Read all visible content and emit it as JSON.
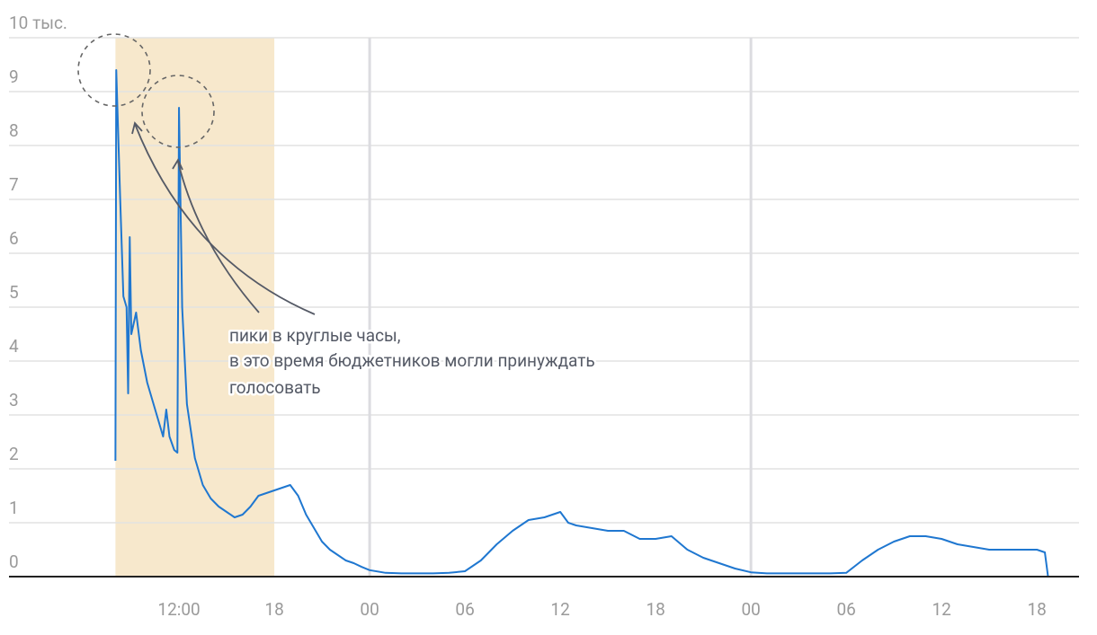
{
  "chart_data": {
    "type": "line",
    "x": [
      8.0,
      8.05,
      8.3,
      8.5,
      8.7,
      8.8,
      8.9,
      9.0,
      9.3,
      9.6,
      10.0,
      10.3,
      10.6,
      11.0,
      11.2,
      11.4,
      11.7,
      11.9,
      12.0,
      12.2,
      12.5,
      13.0,
      13.5,
      14.0,
      14.5,
      15.0,
      15.5,
      16.0,
      16.5,
      17.0,
      17.5,
      18.0,
      18.5,
      19.0,
      19.5,
      20.0,
      20.5,
      21.0,
      21.5,
      22.0,
      22.5,
      23.0,
      23.5,
      24,
      25,
      26,
      27,
      28,
      29,
      30,
      31,
      32,
      33,
      34,
      35,
      36,
      36.5,
      37,
      38,
      39,
      40,
      41,
      42,
      43,
      44,
      45,
      46,
      47,
      48,
      49,
      50,
      51,
      52,
      53,
      54,
      55,
      56,
      57,
      58,
      59,
      60,
      61,
      62,
      63,
      64,
      65,
      66,
      66.5,
      66.7
    ],
    "values": [
      2.15,
      9.4,
      7.0,
      5.2,
      5.0,
      3.4,
      6.3,
      4.5,
      4.9,
      4.2,
      3.6,
      3.3,
      3.0,
      2.6,
      3.1,
      2.6,
      2.35,
      2.3,
      8.7,
      5.0,
      3.2,
      2.2,
      1.7,
      1.45,
      1.3,
      1.2,
      1.1,
      1.15,
      1.3,
      1.5,
      1.55,
      1.6,
      1.65,
      1.7,
      1.5,
      1.15,
      0.9,
      0.65,
      0.5,
      0.4,
      0.3,
      0.25,
      0.18,
      0.12,
      0.07,
      0.06,
      0.06,
      0.06,
      0.07,
      0.1,
      0.3,
      0.6,
      0.85,
      1.05,
      1.1,
      1.2,
      1.0,
      0.95,
      0.9,
      0.85,
      0.85,
      0.7,
      0.7,
      0.75,
      0.5,
      0.35,
      0.25,
      0.15,
      0.08,
      0.06,
      0.06,
      0.06,
      0.06,
      0.06,
      0.07,
      0.3,
      0.5,
      0.65,
      0.75,
      0.75,
      0.7,
      0.6,
      0.55,
      0.5,
      0.5,
      0.5,
      0.5,
      0.45,
      0
    ],
    "color": "#1f77d0",
    "xlim": [
      1.3,
      68.65
    ],
    "ylim": [
      0,
      10
    ],
    "yticks": [
      0,
      1,
      2,
      3,
      4,
      5,
      6,
      7,
      8,
      9,
      {
        "value": 10,
        "label": "10 тыс."
      }
    ],
    "xticks": [
      {
        "value": 12,
        "label": "12:00"
      },
      {
        "value": 18,
        "label": "18"
      },
      {
        "value": 24,
        "label": "00"
      },
      {
        "value": 30,
        "label": "06"
      },
      {
        "value": 36,
        "label": "12"
      },
      {
        "value": 42,
        "label": "18"
      },
      {
        "value": 48,
        "label": "00"
      },
      {
        "value": 54,
        "label": "06"
      },
      {
        "value": 60,
        "label": "12"
      },
      {
        "value": 66,
        "label": "18"
      }
    ],
    "shade": [
      8,
      18
    ],
    "shade_color": "#f7e8cc",
    "vlines": [
      24,
      48
    ],
    "grid": true,
    "annotation": [
      "пики в круглые часы,",
      "в это время бюджетников могли принуждать",
      "голосовать"
    ]
  }
}
